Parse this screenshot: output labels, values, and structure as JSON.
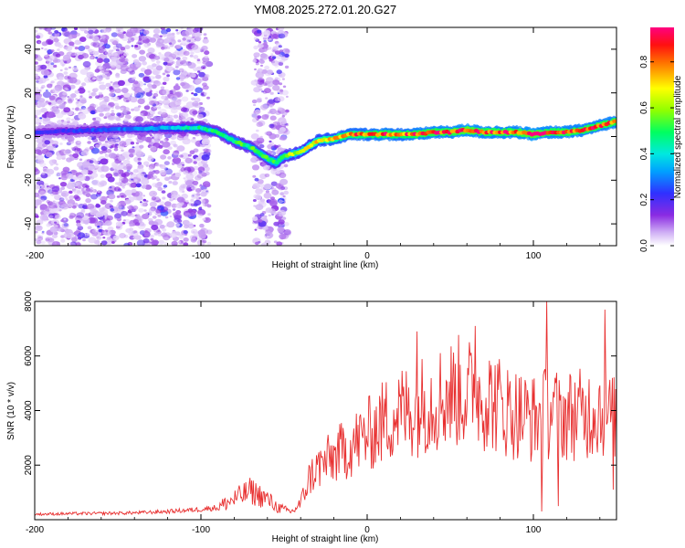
{
  "title": "YM08.2025.272.01.20.G27",
  "chart_data": [
    {
      "type": "heatmap",
      "name": "spectrogram",
      "xlabel": "Height of straight line (km)",
      "ylabel": "Frequency (Hz)",
      "xlim": [
        -200,
        150
      ],
      "ylim": [
        -50,
        50
      ],
      "xticks": [
        -200,
        -100,
        0,
        100
      ],
      "xtick_labels": [
        "-200",
        "-100",
        "0",
        "100"
      ],
      "yticks": [
        -40,
        -20,
        0,
        20,
        40
      ],
      "ytick_labels": [
        "-40",
        "-20",
        "0",
        "20",
        "40"
      ],
      "colorbar": {
        "label": "Normalized spectral amplitude",
        "range": [
          0,
          0.95
        ],
        "ticks": [
          0.0,
          0.2,
          0.4,
          0.6,
          0.8
        ],
        "tick_labels": [
          "0.0",
          "0.2",
          "0.4",
          "0.6",
          "0.8"
        ],
        "colors": [
          "#ffffff",
          "#c8a0f0",
          "#8a2be2",
          "#3030ff",
          "#00c8ff",
          "#00ff80",
          "#80ff00",
          "#ffff00",
          "#ff8000",
          "#ff0000",
          "#ff0080"
        ]
      },
      "ridge": {
        "x": [
          -200,
          -160,
          -120,
          -100,
          -90,
          -80,
          -70,
          -60,
          -55,
          -50,
          -45,
          -40,
          -30,
          -20,
          -10,
          0,
          10,
          20,
          30,
          40,
          50,
          60,
          70,
          80,
          90,
          100,
          110,
          120,
          130,
          140,
          150
        ],
        "y": [
          2,
          3,
          4,
          4,
          2,
          -2,
          -5,
          -10,
          -12,
          -9,
          -8,
          -7,
          -2,
          -1,
          1,
          1,
          1,
          1,
          1,
          2,
          2,
          3,
          2,
          2,
          2,
          1,
          2,
          2,
          3,
          5,
          7
        ],
        "amplitude": [
          0.2,
          0.25,
          0.35,
          0.45,
          0.45,
          0.5,
          0.5,
          0.55,
          0.55,
          0.55,
          0.6,
          0.6,
          0.7,
          0.75,
          0.8,
          0.8,
          0.85,
          0.8,
          0.85,
          0.85,
          0.85,
          0.9,
          0.85,
          0.85,
          0.85,
          0.9,
          0.85,
          0.85,
          0.85,
          0.85,
          0.85
        ]
      },
      "noise_regions": [
        {
          "x": [
            -200,
            -95
          ],
          "y": [
            -50,
            50
          ],
          "amplitude": 0.1
        },
        {
          "x": [
            -68,
            -48
          ],
          "y": [
            -50,
            50
          ],
          "amplitude": 0.1
        }
      ]
    },
    {
      "type": "line",
      "name": "snr",
      "xlabel": "Height of straight line (km)",
      "ylabel": "SNR (10 * v/v)",
      "xlim": [
        -200,
        150
      ],
      "ylim": [
        0,
        8000
      ],
      "xticks": [
        -200,
        -100,
        0,
        100
      ],
      "xtick_labels": [
        "-200",
        "-100",
        "0",
        "100"
      ],
      "yticks": [
        2000,
        4000,
        6000,
        8000
      ],
      "ytick_labels": [
        "2000",
        "4000",
        "6000",
        "8000"
      ],
      "color": "#e83030",
      "series": [
        {
          "name": "SNR",
          "x": [
            -200,
            -180,
            -160,
            -140,
            -120,
            -100,
            -90,
            -80,
            -75,
            -70,
            -65,
            -60,
            -55,
            -50,
            -45,
            -40,
            -35,
            -30,
            -25,
            -20,
            -15,
            -10,
            -5,
            0,
            5,
            10,
            15,
            20,
            25,
            30,
            35,
            40,
            45,
            50,
            55,
            60,
            65,
            70,
            75,
            80,
            85,
            90,
            95,
            100,
            105,
            110,
            115,
            120,
            125,
            130,
            135,
            140,
            145,
            150
          ],
          "y": [
            200,
            220,
            230,
            250,
            300,
            380,
            450,
            750,
            900,
            1050,
            900,
            750,
            500,
            350,
            300,
            600,
            1500,
            1900,
            2100,
            2300,
            2500,
            2700,
            2900,
            3100,
            3300,
            3600,
            3800,
            3950,
            4000,
            4100,
            4300,
            4400,
            4500,
            4600,
            4700,
            4650,
            4600,
            4500,
            4400,
            4200,
            4000,
            3900,
            3800,
            3700,
            3800,
            4000,
            3900,
            3800,
            3900,
            3800,
            4000,
            4100,
            3800,
            3600
          ],
          "peaks": [
            {
              "x": 30,
              "y": 6900
            },
            {
              "x": 65,
              "y": 7100
            },
            {
              "x": 108,
              "y": 8000
            },
            {
              "x": 143,
              "y": 7700
            }
          ],
          "dips": [
            {
              "x": 105,
              "y": 300
            },
            {
              "x": 115,
              "y": 500
            },
            {
              "x": 148,
              "y": 1100
            }
          ]
        }
      ]
    }
  ]
}
